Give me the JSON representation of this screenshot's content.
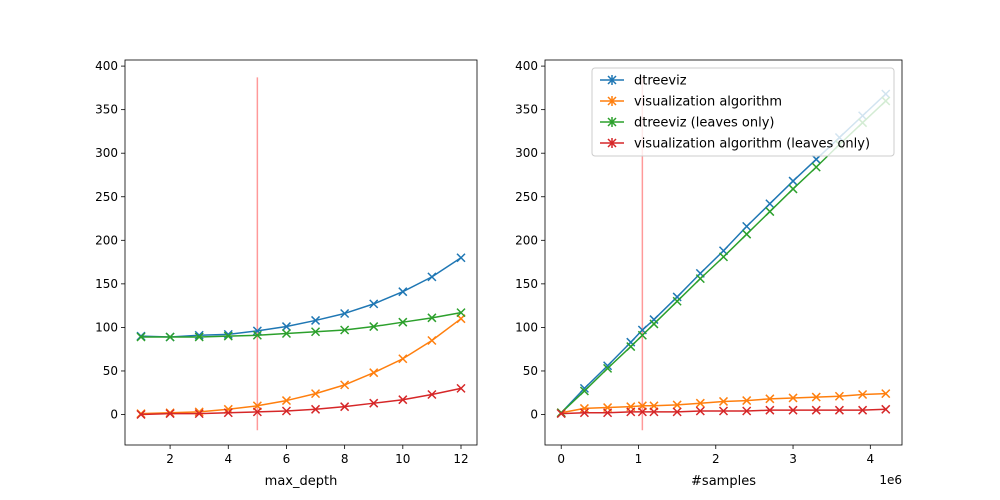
{
  "chart_data": [
    {
      "type": "line",
      "xlabel": "max_depth",
      "ylabel": "",
      "xlim": [
        0.45,
        12.55
      ],
      "ylim": [
        -35,
        407
      ],
      "xticks": [
        2,
        4,
        6,
        8,
        10,
        12
      ],
      "yticks": [
        0,
        50,
        100,
        150,
        200,
        250,
        300,
        350,
        400
      ],
      "vline": {
        "x": 5,
        "ymin": -18,
        "ymax": 387,
        "color": "#ff9999"
      },
      "legend": false,
      "series": [
        {
          "name": "dtreeviz",
          "color": "#1f77b4",
          "marker": "x",
          "x": [
            1,
            2,
            3,
            4,
            5,
            6,
            7,
            8,
            9,
            10,
            11,
            12
          ],
          "y": [
            90,
            89,
            91,
            92,
            96,
            101,
            108,
            116,
            127,
            141,
            158,
            180
          ]
        },
        {
          "name": "visualization algorithm",
          "color": "#ff7f0e",
          "marker": "x",
          "x": [
            1,
            2,
            3,
            4,
            5,
            6,
            7,
            8,
            9,
            10,
            11,
            12
          ],
          "y": [
            1,
            2,
            3,
            6,
            10,
            16,
            24,
            34,
            48,
            64,
            85,
            110
          ]
        },
        {
          "name": "dtreeviz (leaves only)",
          "color": "#2ca02c",
          "marker": "x",
          "x": [
            1,
            2,
            3,
            4,
            5,
            6,
            7,
            8,
            9,
            10,
            11,
            12
          ],
          "y": [
            89,
            89,
            89,
            90,
            91,
            93,
            95,
            97,
            101,
            106,
            111,
            117
          ]
        },
        {
          "name": "visualization algorithm (leaves only)",
          "color": "#d62728",
          "marker": "x",
          "x": [
            1,
            2,
            3,
            4,
            5,
            6,
            7,
            8,
            9,
            10,
            11,
            12
          ],
          "y": [
            0,
            1,
            1,
            2,
            3,
            4,
            6,
            9,
            13,
            17,
            23,
            30
          ]
        }
      ]
    },
    {
      "type": "line",
      "xlabel": "#samples",
      "ylabel": "",
      "offset_text": "1e6",
      "xlim": [
        -0.21,
        4.41
      ],
      "ylim": [
        -35,
        407
      ],
      "xticks": [
        0,
        1,
        2,
        3,
        4
      ],
      "yticks": [
        0,
        50,
        100,
        150,
        200,
        250,
        300,
        350,
        400
      ],
      "vline": {
        "x": 1.05,
        "ymin": -18,
        "ymax": 387,
        "color": "#ff9999"
      },
      "legend": true,
      "legend_position": "top-right",
      "series": [
        {
          "name": "dtreeviz",
          "color": "#1f77b4",
          "marker": "x",
          "x": [
            0,
            0.3,
            0.6,
            0.9,
            1.05,
            1.2,
            1.5,
            1.8,
            2.1,
            2.4,
            2.7,
            3.0,
            3.3,
            3.6,
            3.9,
            4.2
          ],
          "y": [
            2,
            30,
            56,
            83,
            97,
            109,
            135,
            162,
            188,
            216,
            242,
            268,
            293,
            318,
            343,
            368
          ]
        },
        {
          "name": "visualization algorithm",
          "color": "#ff7f0e",
          "marker": "x",
          "x": [
            0,
            0.3,
            0.6,
            0.9,
            1.05,
            1.2,
            1.5,
            1.8,
            2.1,
            2.4,
            2.7,
            3.0,
            3.3,
            3.6,
            3.9,
            4.2
          ],
          "y": [
            2,
            7,
            8,
            9,
            10,
            10,
            11,
            13,
            15,
            16,
            18,
            19,
            20,
            21,
            23,
            24
          ]
        },
        {
          "name": "dtreeviz (leaves only)",
          "color": "#2ca02c",
          "marker": "x",
          "x": [
            0,
            0.3,
            0.6,
            0.9,
            1.05,
            1.2,
            1.5,
            1.8,
            2.1,
            2.4,
            2.7,
            3.0,
            3.3,
            3.6,
            3.9,
            4.2
          ],
          "y": [
            2,
            27,
            53,
            78,
            91,
            104,
            130,
            156,
            181,
            207,
            233,
            259,
            284,
            310,
            335,
            360
          ]
        },
        {
          "name": "visualization algorithm (leaves only)",
          "color": "#d62728",
          "marker": "x",
          "x": [
            0,
            0.3,
            0.6,
            0.9,
            1.05,
            1.2,
            1.5,
            1.8,
            2.1,
            2.4,
            2.7,
            3.0,
            3.3,
            3.6,
            3.9,
            4.2
          ],
          "y": [
            1,
            2,
            2,
            3,
            3,
            3,
            3,
            4,
            4,
            4,
            5,
            5,
            5,
            5,
            5,
            6
          ]
        }
      ]
    }
  ]
}
